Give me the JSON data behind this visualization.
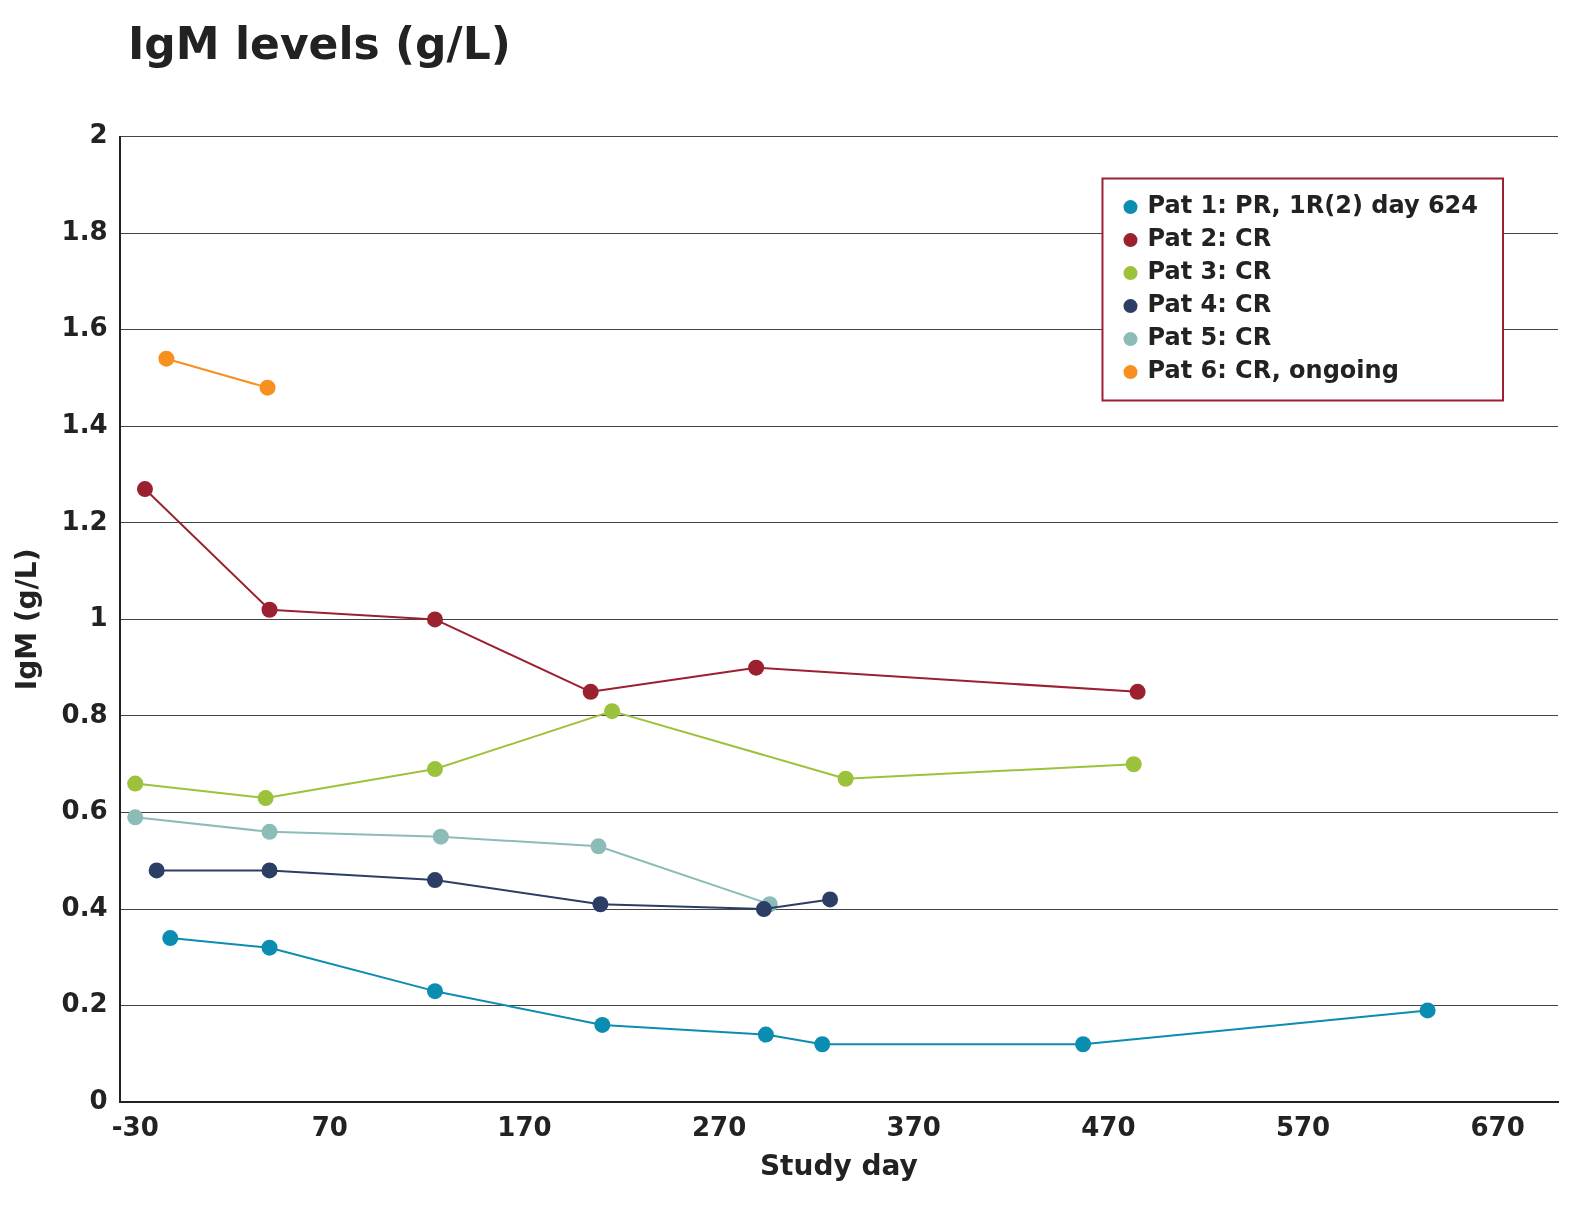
{
  "chart_data": {
    "type": "line",
    "title": "IgM levels (g/L)",
    "xlabel": "Study day",
    "ylabel": "IgM (g/L)",
    "xlim": [
      -38,
      701
    ],
    "xticks": [
      -30,
      70,
      170,
      270,
      370,
      470,
      570,
      670
    ],
    "ylim": [
      0,
      2
    ],
    "yticks": [
      0,
      0.2,
      0.4,
      0.6,
      0.8,
      1,
      1.2,
      1.4,
      1.6,
      1.8,
      2
    ],
    "grid": "y",
    "legend": "top right",
    "marker": "circle",
    "line_style": "solid",
    "series": [
      {
        "name": "Pat 1: PR, 1R(2) day 624",
        "color": "#0a8db0",
        "x": [
          -12,
          39,
          124,
          210,
          294,
          323,
          457,
          634
        ],
        "values": [
          0.34,
          0.32,
          0.23,
          0.16,
          0.14,
          0.12,
          0.12,
          0.19
        ]
      },
      {
        "name": "Pat 2: CR",
        "color": "#9b2030",
        "x": [
          -25,
          39,
          124,
          204,
          289,
          485
        ],
        "values": [
          1.27,
          1.02,
          1.0,
          0.85,
          0.9,
          0.85
        ]
      },
      {
        "name": "Pat 3: CR",
        "color": "#9cc23c",
        "x": [
          -30,
          37,
          124,
          215,
          335,
          483
        ],
        "values": [
          0.66,
          0.63,
          0.69,
          0.81,
          0.67,
          0.7
        ]
      },
      {
        "name": "Pat 4: CR",
        "color": "#2c3e66",
        "x": [
          -19,
          39,
          124,
          209,
          293,
          327
        ],
        "values": [
          0.48,
          0.48,
          0.46,
          0.41,
          0.4,
          0.42
        ]
      },
      {
        "name": "Pat 5: CR",
        "color": "#8bbcb8",
        "x": [
          -30,
          39,
          127,
          208,
          296
        ],
        "values": [
          0.59,
          0.56,
          0.55,
          0.53,
          0.41
        ]
      },
      {
        "name": "Pat 6: CR, ongoing",
        "color": "#f7901e",
        "x": [
          -14,
          38
        ],
        "values": [
          1.54,
          1.48
        ]
      }
    ]
  }
}
